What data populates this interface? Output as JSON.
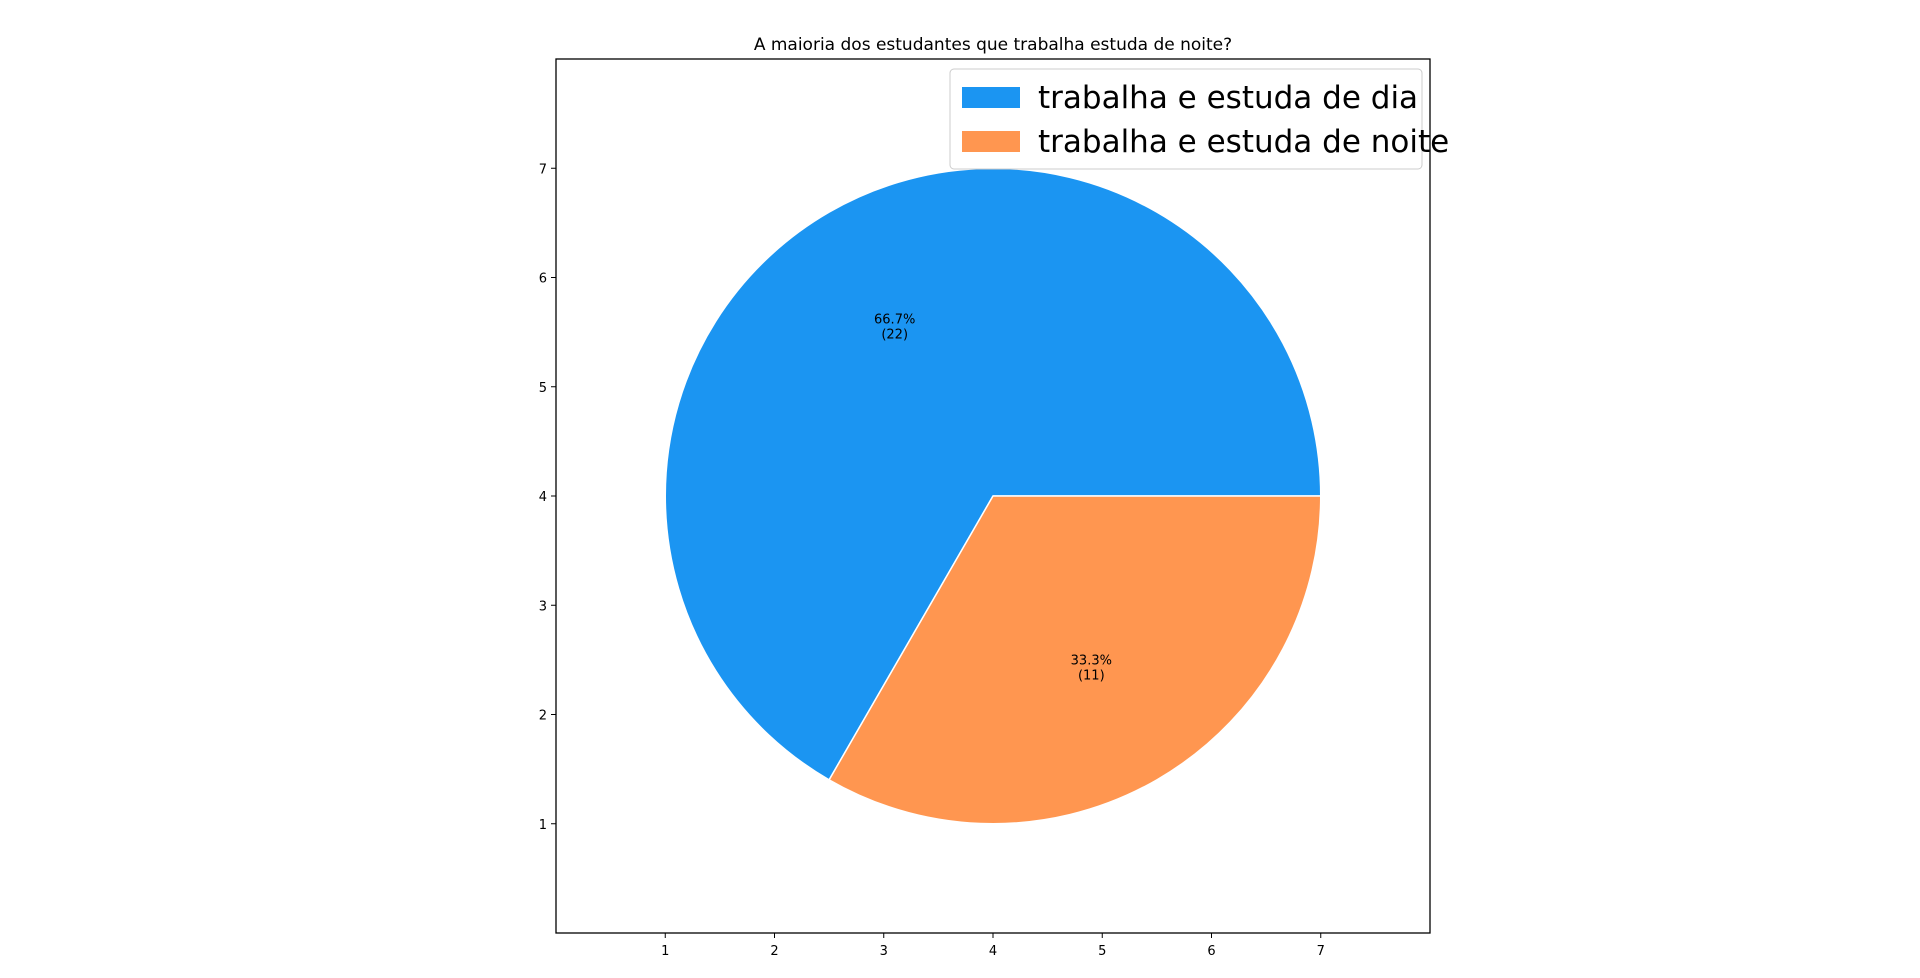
{
  "chart_data": {
    "type": "pie",
    "title": "A maioria dos estudantes que trabalha estuda de noite?",
    "xlabel": "",
    "ylabel": "",
    "xlim": [
      0,
      8
    ],
    "ylim": [
      0,
      8
    ],
    "xticks": [
      1,
      2,
      3,
      4,
      5,
      6,
      7
    ],
    "yticks": [
      1,
      2,
      3,
      4,
      5,
      6,
      7
    ],
    "center": [
      4,
      4
    ],
    "radius": 3,
    "start_angle_deg": 0,
    "legend_position": "top-right",
    "grid": false,
    "slices": [
      {
        "label": "trabalha e estuda de dia",
        "value": 22,
        "percent": 66.7,
        "pct_text": "66.7%",
        "count_text": "(22)",
        "color": "#1b95f2"
      },
      {
        "label": "trabalha e estuda de noite",
        "value": 11,
        "percent": 33.3,
        "pct_text": "33.3%",
        "count_text": "(11)",
        "color": "#ff9650"
      }
    ]
  }
}
